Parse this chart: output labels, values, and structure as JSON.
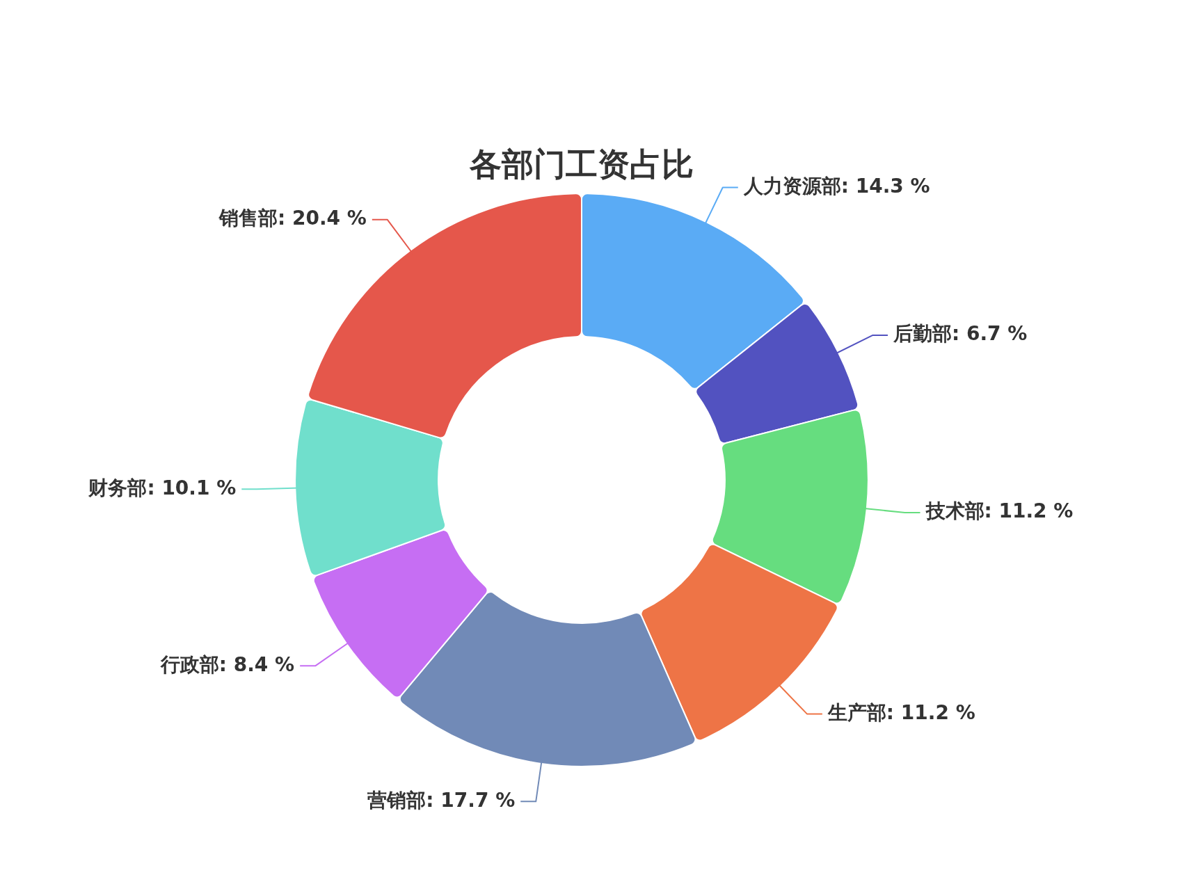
{
  "chart_data": {
    "type": "donut",
    "title": "各部门工资占比",
    "categories": [
      "人力资源部",
      "后勤部",
      "技术部",
      "生产部",
      "营销部",
      "行政部",
      "财务部",
      "销售部"
    ],
    "values": [
      14.3,
      6.7,
      11.2,
      11.2,
      17.7,
      8.4,
      10.1,
      20.4
    ],
    "value_labels": [
      "14.3 %",
      "6.7 %",
      "11.2 %",
      "11.2 %",
      "17.7 %",
      "8.4 %",
      "10.1 %",
      "20.4 %"
    ],
    "colors": [
      "#5aabf5",
      "#5252c0",
      "#66dd7f",
      "#ee7446",
      "#718ab7",
      "#c66ef3",
      "#70dfcc",
      "#e5574b"
    ],
    "legend": false
  }
}
